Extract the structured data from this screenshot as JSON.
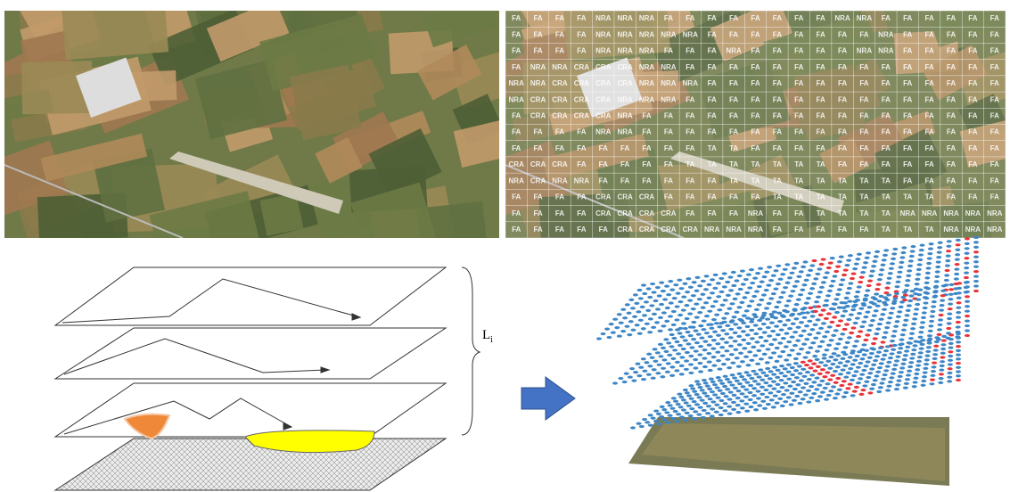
{
  "brace_label": {
    "main": "L",
    "sub": "i"
  },
  "grid_labels": [
    [
      "FA",
      "FA",
      "FA",
      "FA",
      "NRA",
      "NRA",
      "NRA",
      "FA",
      "FA",
      "FA",
      "FA",
      "FA",
      "FA",
      "FA",
      "FA",
      "NRA",
      "NRA",
      "FA",
      "FA",
      "FA",
      "FA",
      "FA",
      "FA"
    ],
    [
      "FA",
      "FA",
      "FA",
      "FA",
      "NRA",
      "NRA",
      "NRA",
      "NRA",
      "NRA",
      "FA",
      "FA",
      "FA",
      "FA",
      "FA",
      "FA",
      "FA",
      "FA",
      "NRA",
      "FA",
      "FA",
      "FA",
      "FA",
      "FA"
    ],
    [
      "FA",
      "FA",
      "FA",
      "FA",
      "NRA",
      "NRA",
      "NRA",
      "FA",
      "FA",
      "FA",
      "NRA",
      "FA",
      "FA",
      "FA",
      "FA",
      "FA",
      "NRA",
      "NRA",
      "FA",
      "FA",
      "FA",
      "FA",
      "FA"
    ],
    [
      "FA",
      "NRA",
      "NRA",
      "CRA",
      "CRA",
      "CRA",
      "NRA",
      "NRA",
      "FA",
      "FA",
      "FA",
      "FA",
      "FA",
      "FA",
      "FA",
      "FA",
      "FA",
      "FA",
      "FA",
      "FA",
      "FA",
      "FA",
      "FA"
    ],
    [
      "NRA",
      "NRA",
      "CRA",
      "CRA",
      "CRA",
      "CRA",
      "NRA",
      "NRA",
      "NRA",
      "FA",
      "FA",
      "FA",
      "FA",
      "FA",
      "FA",
      "FA",
      "FA",
      "FA",
      "FA",
      "FA",
      "FA",
      "FA",
      "FA"
    ],
    [
      "NRA",
      "CRA",
      "CRA",
      "CRA",
      "CRA",
      "NRA",
      "NRA",
      "NRA",
      "FA",
      "FA",
      "FA",
      "FA",
      "FA",
      "FA",
      "FA",
      "FA",
      "FA",
      "FA",
      "FA",
      "FA",
      "FA",
      "FA",
      "FA"
    ],
    [
      "FA",
      "CRA",
      "CRA",
      "CRA",
      "CRA",
      "NRA",
      "FA",
      "FA",
      "FA",
      "FA",
      "FA",
      "FA",
      "FA",
      "FA",
      "FA",
      "FA",
      "FA",
      "FA",
      "FA",
      "FA",
      "FA",
      "FA",
      "FA"
    ],
    [
      "FA",
      "FA",
      "FA",
      "FA",
      "NRA",
      "NRA",
      "FA",
      "FA",
      "FA",
      "FA",
      "FA",
      "FA",
      "FA",
      "FA",
      "FA",
      "FA",
      "FA",
      "FA",
      "FA",
      "FA",
      "FA",
      "FA",
      "FA"
    ],
    [
      "FA",
      "FA",
      "FA",
      "FA",
      "FA",
      "FA",
      "FA",
      "FA",
      "FA",
      "TA",
      "TA",
      "FA",
      "FA",
      "FA",
      "FA",
      "FA",
      "FA",
      "FA",
      "FA",
      "FA",
      "FA",
      "FA",
      "FA"
    ],
    [
      "CRA",
      "CRA",
      "CRA",
      "FA",
      "FA",
      "FA",
      "FA",
      "FA",
      "TA",
      "TA",
      "TA",
      "TA",
      "TA",
      "TA",
      "TA",
      "FA",
      "FA",
      "FA",
      "FA",
      "FA",
      "FA",
      "FA",
      "FA"
    ],
    [
      "NRA",
      "CRA",
      "NRA",
      "NRA",
      "FA",
      "FA",
      "FA",
      "FA",
      "FA",
      "FA",
      "TA",
      "TA",
      "TA",
      "TA",
      "TA",
      "TA",
      "TA",
      "TA",
      "FA",
      "FA",
      "FA",
      "FA",
      "FA"
    ],
    [
      "FA",
      "FA",
      "FA",
      "FA",
      "CRA",
      "CRA",
      "CRA",
      "FA",
      "FA",
      "FA",
      "FA",
      "FA",
      "TA",
      "TA",
      "TA",
      "TA",
      "TA",
      "TA",
      "TA",
      "TA",
      "FA",
      "FA",
      "FA"
    ],
    [
      "FA",
      "FA",
      "FA",
      "FA",
      "CRA",
      "CRA",
      "CRA",
      "CRA",
      "FA",
      "FA",
      "FA",
      "NRA",
      "FA",
      "FA",
      "TA",
      "TA",
      "TA",
      "TA",
      "NRA",
      "NRA",
      "NRA",
      "NRA",
      "NRA"
    ],
    [
      "FA",
      "FA",
      "FA",
      "FA",
      "FA",
      "CRA",
      "CRA",
      "CRA",
      "CRA",
      "NRA",
      "NRA",
      "NRA",
      "FA",
      "FA",
      "FA",
      "FA",
      "FA",
      "TA",
      "TA",
      "TA",
      "NRA",
      "NRA",
      "NRA"
    ]
  ]
}
